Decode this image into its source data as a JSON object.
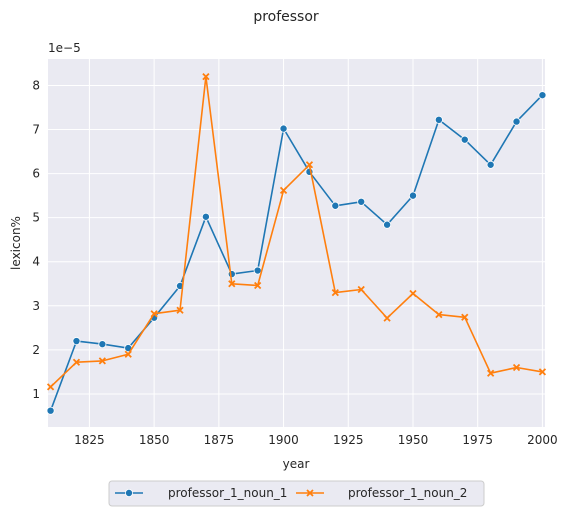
{
  "chart_data": {
    "type": "line",
    "title": "professor",
    "xlabel": "year",
    "ylabel": "lexicon%",
    "y_offset_label": "1e−5",
    "xlim": [
      1809,
      2001
    ],
    "ylim": [
      0.25,
      8.6
    ],
    "x_ticks": [
      1825,
      1850,
      1875,
      1900,
      1925,
      1950,
      1975,
      2000
    ],
    "y_ticks": [
      1,
      2,
      3,
      4,
      5,
      6,
      7,
      8
    ],
    "grid": true,
    "legend_position": "bottom-center",
    "x": [
      1810,
      1820,
      1830,
      1840,
      1850,
      1860,
      1870,
      1880,
      1890,
      1900,
      1910,
      1920,
      1930,
      1940,
      1950,
      1960,
      1970,
      1980,
      1990,
      2000
    ],
    "series": [
      {
        "name": "professor_1_noun_1",
        "color": "#1f77b4",
        "marker": "circle",
        "values": [
          0.62,
          2.2,
          2.13,
          2.04,
          2.73,
          3.45,
          5.02,
          3.72,
          3.8,
          7.02,
          6.04,
          5.27,
          5.36,
          4.84,
          5.5,
          7.22,
          6.77,
          6.2,
          7.18,
          7.78
        ]
      },
      {
        "name": "professor_1_noun_2",
        "color": "#ff7f0e",
        "marker": "x",
        "values": [
          1.16,
          1.72,
          1.75,
          1.9,
          2.82,
          2.9,
          8.2,
          3.5,
          3.46,
          5.62,
          6.2,
          3.3,
          3.37,
          2.72,
          3.28,
          2.8,
          2.74,
          1.47,
          1.6,
          1.5
        ]
      }
    ]
  }
}
